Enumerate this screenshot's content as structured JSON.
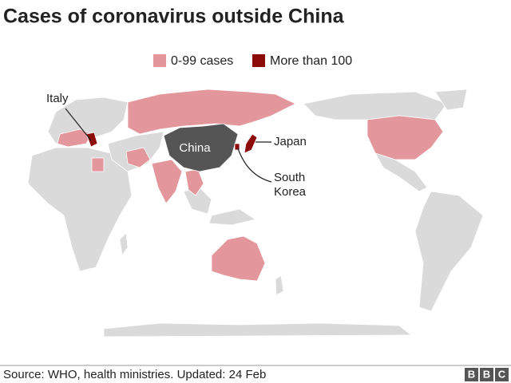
{
  "title": "Cases of coronavirus outside China",
  "legend": [
    {
      "label": "0-99 cases",
      "color": "#e3979c"
    },
    {
      "label": "More than 100",
      "color": "#8c0a0a"
    }
  ],
  "labels": {
    "italy": "Italy",
    "china": "China",
    "japan": "Japan",
    "south_korea": [
      "South",
      "Korea"
    ]
  },
  "footer": {
    "source": "Source: WHO, health ministries. Updated: 24 Feb",
    "logo": [
      "B",
      "B",
      "C"
    ]
  }
}
